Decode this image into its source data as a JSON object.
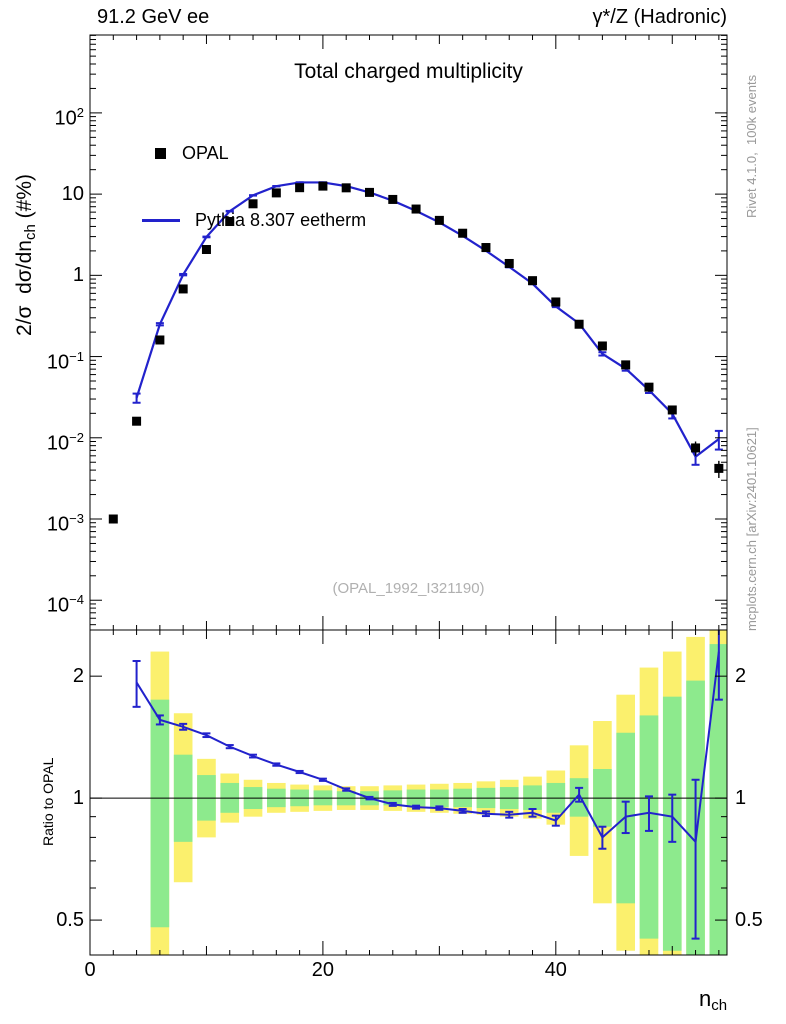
{
  "header": {
    "left": "91.2 GeV ee",
    "right": "γ*/Z (Hadronic)"
  },
  "titles": {
    "main": "Total charged multiplicity",
    "watermark": "(OPAL_1992_I321190)",
    "ylabel_main_prefix": "2/σ  dσ/dn",
    "ylabel_main_sub": "ch",
    "ylabel_main_suffix": " (#%)",
    "ylabel_ratio": "Ratio to OPAL",
    "xlabel_base": "n",
    "xlabel_sub": "ch"
  },
  "side_notes": {
    "top": "Rivet 4.1.0,  100k events",
    "bottom": "mcplots.cern.ch [arXiv:2401.10621]"
  },
  "legend": [
    {
      "label": "OPAL",
      "marker": "black-square"
    },
    {
      "label": "Pythia 8.307 eetherm",
      "marker": "blue-line"
    }
  ],
  "colors": {
    "mc_line": "#2222cc",
    "data_marker": "#000000",
    "band_yellow": "#fbf06d",
    "band_green": "#8dea8d",
    "gray_text": "#9a9a9a"
  },
  "chart_data": {
    "type": "line",
    "title": "Total charged multiplicity",
    "xlabel": "n_ch",
    "ylabel": "2/sigma dsigma/dn_ch (#%)",
    "x": [
      2,
      4,
      6,
      8,
      10,
      12,
      14,
      16,
      18,
      20,
      22,
      24,
      26,
      28,
      30,
      32,
      34,
      36,
      38,
      40,
      42,
      44,
      46,
      48,
      50,
      52,
      54
    ],
    "series": [
      {
        "name": "OPAL",
        "style": "black-squares",
        "values": [
          0.001,
          0.016,
          0.16,
          0.68,
          2.08,
          4.6,
          7.6,
          10.35,
          12.0,
          12.55,
          11.95,
          10.5,
          8.6,
          6.55,
          4.75,
          3.3,
          2.2,
          1.4,
          0.86,
          0.47,
          0.25,
          0.135,
          0.079,
          0.042,
          0.022,
          0.0075,
          0.0042
        ],
        "errors": [
          0.00012,
          0.001,
          0.0064,
          0.02,
          0.042,
          0.07,
          0.09,
          0.1,
          0.12,
          0.13,
          0.12,
          0.11,
          0.09,
          0.08,
          0.07,
          0.06,
          0.044,
          0.035,
          0.026,
          0.016,
          0.013,
          0.008,
          0.006,
          0.0042,
          0.0026,
          0.0015,
          0.001
        ]
      },
      {
        "name": "Pythia 8.307 eetherm",
        "style": "blue-line",
        "values": [
          null,
          0.031,
          0.25,
          1.02,
          2.97,
          6.16,
          9.65,
          12.52,
          13.92,
          13.93,
          12.55,
          10.5,
          8.3,
          6.22,
          4.49,
          3.07,
          2.01,
          1.27,
          0.79,
          0.414,
          0.255,
          0.108,
          0.071,
          0.0386,
          0.0198,
          0.00585,
          0.00966
        ],
        "errors": [
          null,
          0.004,
          0.008,
          0.02,
          0.03,
          0.05,
          0.06,
          0.07,
          0.07,
          0.07,
          0.06,
          0.05,
          0.05,
          0.04,
          0.03,
          0.025,
          0.02,
          0.015,
          0.012,
          0.008,
          0.007,
          0.005,
          0.004,
          0.003,
          0.0025,
          0.0012,
          0.0025
        ]
      }
    ],
    "ratio_panel": {
      "ylabel": "Ratio to OPAL",
      "values": [
        null,
        1.93,
        1.56,
        1.5,
        1.43,
        1.34,
        1.27,
        1.21,
        1.16,
        1.11,
        1.05,
        1.0,
        0.965,
        0.95,
        0.945,
        0.93,
        0.915,
        0.91,
        0.92,
        0.88,
        1.02,
        0.8,
        0.9,
        0.92,
        0.9,
        0.78,
        2.3
      ],
      "errors": [
        null,
        0.25,
        0.04,
        0.025,
        0.015,
        0.012,
        0.01,
        0.008,
        0.007,
        0.007,
        0.007,
        0.007,
        0.008,
        0.008,
        0.009,
        0.01,
        0.012,
        0.015,
        0.02,
        0.025,
        0.04,
        0.05,
        0.08,
        0.09,
        0.12,
        0.33,
        0.55
      ],
      "band_green_lo": [
        null,
        null,
        0.48,
        0.78,
        0.88,
        0.92,
        0.94,
        0.95,
        0.955,
        0.96,
        0.96,
        0.96,
        0.96,
        0.955,
        0.95,
        0.95,
        0.945,
        0.94,
        0.935,
        0.92,
        0.9,
        0.85,
        0.55,
        0.45,
        0.42,
        0.4,
        0.38
      ],
      "band_green_hi": [
        null,
        null,
        1.75,
        1.28,
        1.14,
        1.09,
        1.065,
        1.055,
        1.05,
        1.045,
        1.04,
        1.04,
        1.045,
        1.05,
        1.05,
        1.055,
        1.06,
        1.065,
        1.075,
        1.09,
        1.12,
        1.18,
        1.45,
        1.6,
        1.78,
        1.95,
        2.4
      ],
      "band_yellow_lo": [
        null,
        null,
        0.4,
        0.62,
        0.8,
        0.87,
        0.9,
        0.92,
        0.925,
        0.93,
        0.935,
        0.935,
        0.93,
        0.925,
        0.92,
        0.915,
        0.91,
        0.9,
        0.89,
        0.86,
        0.72,
        0.55,
        0.42,
        0.38,
        0.35,
        0.3,
        0.3
      ],
      "band_yellow_hi": [
        null,
        null,
        2.3,
        1.62,
        1.25,
        1.15,
        1.11,
        1.09,
        1.08,
        1.075,
        1.07,
        1.07,
        1.075,
        1.08,
        1.085,
        1.09,
        1.1,
        1.11,
        1.13,
        1.17,
        1.35,
        1.55,
        1.8,
        2.1,
        2.3,
        2.5,
        2.6
      ]
    },
    "axes": {
      "x": {
        "min": 0,
        "max": 54.7,
        "minor_step": 2,
        "tick_labels": [
          {
            "v": 0,
            "label": "0"
          },
          {
            "v": 20,
            "label": "20"
          },
          {
            "v": 40,
            "label": "40"
          }
        ]
      },
      "y_main": {
        "scale": "log",
        "min": 4.3e-05,
        "max": 910,
        "ticks": [
          {
            "v": 100,
            "label": "10",
            "exp": "2"
          },
          {
            "v": 10,
            "label": "10"
          },
          {
            "v": 1,
            "label": "1"
          },
          {
            "v": 0.1,
            "label": "10",
            "exp": "−1"
          },
          {
            "v": 0.01,
            "label": "10",
            "exp": "−2"
          },
          {
            "v": 0.001,
            "label": "10",
            "exp": "−3"
          },
          {
            "v": 0.0001,
            "label": "10",
            "exp": "−4"
          }
        ]
      },
      "y_ratio": {
        "scale": "log",
        "min": 0.41,
        "max": 2.6,
        "ticks": [
          {
            "v": 2,
            "label": "2"
          },
          {
            "v": 1,
            "label": "1"
          },
          {
            "v": 0.5,
            "label": "0.5"
          }
        ],
        "minor": [
          0.6,
          0.7,
          0.8,
          0.9
        ]
      }
    }
  }
}
